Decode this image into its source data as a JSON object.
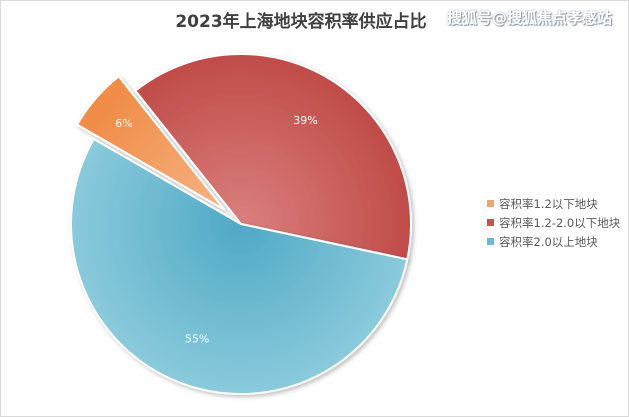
{
  "watermark": "搜狐号@搜狐焦点孝感站",
  "chart_data": {
    "type": "pie",
    "title": "2023年上海地块容积率供应占比",
    "legend_position": "right",
    "series": [
      {
        "name": "容积率1.2以下地块",
        "value": 6,
        "label": "6%",
        "color": "#f4a46a",
        "exploded": true
      },
      {
        "name": "容积率1.2-2.0以下地块",
        "value": 39,
        "label": "39%",
        "color": "#c9534f",
        "exploded": false
      },
      {
        "name": "容积率2.0以上地块",
        "value": 55,
        "label": "55%",
        "color": "#6bb8d2",
        "exploded": false
      }
    ]
  }
}
